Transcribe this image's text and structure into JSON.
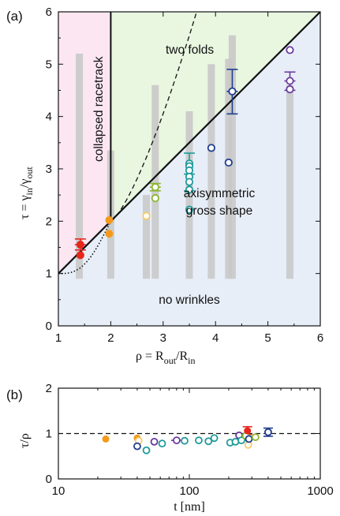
{
  "chart_data": [
    {
      "panel": "(a)",
      "type": "scatter",
      "xlabel": "ρ = R_out/R_in",
      "ylabel": "τ = γ_in/γ_out",
      "xlim": [
        1,
        6
      ],
      "ylim": [
        0,
        6
      ],
      "xticks": [
        1,
        2,
        3,
        4,
        5,
        6
      ],
      "yticks": [
        0,
        1,
        2,
        3,
        4,
        5,
        6
      ],
      "regions": [
        {
          "label": "collapsed racetrack",
          "color": "#fbe6f1",
          "bounds": "x in [1,2], y > x"
        },
        {
          "label": "two folds",
          "color": "#e9f6e0",
          "bounds": "x > 2, y > x"
        },
        {
          "label": "axisymmetric gross shape",
          "color": "#e8eef8",
          "bounds": "y < x"
        },
        {
          "label": "no wrinkles",
          "color": "#e8eef8",
          "bounds": "below curve"
        }
      ],
      "gray_bars": [
        {
          "x": 1.4,
          "y_top": 5.2
        },
        {
          "x": 2.0,
          "y_top": 3.35
        },
        {
          "x": 2.68,
          "y_top": 2.5
        },
        {
          "x": 2.85,
          "y_top": 4.6
        },
        {
          "x": 3.5,
          "y_top": 4.1
        },
        {
          "x": 3.92,
          "y_top": 5.0
        },
        {
          "x": 4.25,
          "y_top": 5.1
        },
        {
          "x": 4.32,
          "y_top": 5.55
        },
        {
          "x": 5.42,
          "y_top": 4.6
        }
      ],
      "gray_bar_bottom": 0.9,
      "series": [
        {
          "color": "#e8261c",
          "filled": true,
          "points": [
            {
              "x": 1.42,
              "y": 1.55
            },
            {
              "x": 1.42,
              "y": 1.35
            }
          ],
          "errbar": {
            "x": 1.42,
            "y": 1.55,
            "lo": 1.45,
            "hi": 1.66
          }
        },
        {
          "color": "#f39a1c",
          "filled": true,
          "points": [
            {
              "x": 1.97,
              "y": 2.02
            },
            {
              "x": 1.97,
              "y": 1.76
            }
          ]
        },
        {
          "color": "#f6cd6a",
          "filled": false,
          "points": [
            {
              "x": 2.68,
              "y": 2.1
            }
          ]
        },
        {
          "color": "#8cb52f",
          "filled": false,
          "points": [
            {
              "x": 2.85,
              "y": 2.65
            },
            {
              "x": 2.85,
              "y": 2.44
            }
          ],
          "errbar": {
            "x": 2.85,
            "y": 2.65,
            "lo": 2.58,
            "hi": 2.72
          }
        },
        {
          "color": "#1f9a9a",
          "filled": false,
          "points": [
            {
              "x": 3.5,
              "y": 3.1
            },
            {
              "x": 3.5,
              "y": 3.05
            },
            {
              "x": 3.5,
              "y": 2.97
            },
            {
              "x": 3.5,
              "y": 2.85
            },
            {
              "x": 3.5,
              "y": 2.75
            },
            {
              "x": 3.5,
              "y": 2.6
            },
            {
              "x": 3.5,
              "y": 2.22
            }
          ],
          "errbar": {
            "x": 3.5,
            "y": 2.9,
            "lo": 2.58,
            "hi": 3.3
          }
        },
        {
          "color": "#203c8e",
          "filled": false,
          "points": [
            {
              "x": 3.92,
              "y": 3.4
            },
            {
              "x": 4.25,
              "y": 3.12
            },
            {
              "x": 4.32,
              "y": 4.48
            }
          ],
          "errbar": {
            "x": 4.32,
            "y": 4.48,
            "lo": 4.05,
            "hi": 4.9
          }
        },
        {
          "color": "#6a3a9e",
          "filled": false,
          "points": [
            {
              "x": 5.42,
              "y": 5.27
            },
            {
              "x": 5.42,
              "y": 4.68
            },
            {
              "x": 5.42,
              "y": 4.52
            }
          ],
          "errbar": {
            "x": 5.42,
            "y": 4.68,
            "lo": 4.5,
            "hi": 4.85
          }
        }
      ]
    },
    {
      "panel": "(b)",
      "type": "scatter",
      "xlabel": "t [nm]",
      "ylabel": "τ/ρ",
      "xscale": "log",
      "xlim": [
        10,
        1000
      ],
      "ylim": [
        0,
        2
      ],
      "xticks": [
        10,
        100,
        1000
      ],
      "yticks": [
        0,
        1,
        2
      ],
      "reference_line": 1,
      "points": [
        {
          "x": 23,
          "y": 0.88,
          "color": "#f39a1c",
          "filled": true
        },
        {
          "x": 40,
          "y": 0.9,
          "color": "#f39a1c",
          "filled": true
        },
        {
          "x": 41,
          "y": 0.84,
          "color": "#f6cd6a",
          "filled": false
        },
        {
          "x": 40,
          "y": 0.72,
          "color": "#203c8e",
          "filled": false
        },
        {
          "x": 47,
          "y": 0.63,
          "color": "#1f9a9a",
          "filled": false
        },
        {
          "x": 54,
          "y": 0.82,
          "color": "#6a3a9e",
          "filled": false
        },
        {
          "x": 62,
          "y": 0.78,
          "color": "#1f9a9a",
          "filled": false
        },
        {
          "x": 80,
          "y": 0.85,
          "color": "#6a3a9e",
          "filled": false
        },
        {
          "x": 92,
          "y": 0.84,
          "color": "#1f9a9a",
          "filled": false
        },
        {
          "x": 118,
          "y": 0.85,
          "color": "#1f9a9a",
          "filled": false
        },
        {
          "x": 140,
          "y": 0.83,
          "color": "#1f9a9a",
          "filled": false
        },
        {
          "x": 155,
          "y": 0.9,
          "color": "#1f9a9a",
          "filled": false
        },
        {
          "x": 205,
          "y": 0.8,
          "color": "#1f9a9a",
          "filled": false
        },
        {
          "x": 225,
          "y": 0.82,
          "color": "#1f9a9a",
          "filled": false
        },
        {
          "x": 240,
          "y": 0.96,
          "color": "#6a3a9e",
          "filled": false
        },
        {
          "x": 250,
          "y": 0.85,
          "color": "#1f9a9a",
          "filled": false
        },
        {
          "x": 270,
          "y": 0.95,
          "color": "#8cb52f",
          "filled": false
        },
        {
          "x": 278,
          "y": 1.06,
          "color": "#e8261c",
          "filled": true
        },
        {
          "x": 282,
          "y": 0.75,
          "color": "#f6cd6a",
          "filled": false
        },
        {
          "x": 285,
          "y": 0.88,
          "color": "#203c8e",
          "filled": false
        },
        {
          "x": 320,
          "y": 0.92,
          "color": "#8cb52f",
          "filled": false
        },
        {
          "x": 400,
          "y": 1.03,
          "color": "#203c8e",
          "filled": false
        }
      ],
      "errbars": [
        {
          "x": 278,
          "lo": 0.98,
          "hi": 1.15,
          "color": "#e8261c"
        },
        {
          "x": 400,
          "lo": 0.94,
          "hi": 1.12,
          "color": "#203c8e"
        },
        {
          "x": 80,
          "lo": 0.82,
          "hi": 0.88,
          "color": "#6a3a9e",
          "horizontal": true
        }
      ]
    }
  ],
  "labels": {
    "panel_a": "(a)",
    "panel_b": "(b)",
    "collapsed": "collapsed racetrack",
    "two_folds": "two folds",
    "axisym_1": "axisymmetric",
    "axisym_2": "gross shape",
    "no_wrinkles": "no wrinkles",
    "ylabel_a": "τ = γ",
    "ylabel_a_sub1": "in",
    "ylabel_a_mid": "/γ",
    "ylabel_a_sub2": "out",
    "xlabel_a": "ρ = R",
    "xlabel_a_sub1": "out",
    "xlabel_a_mid": "/R",
    "xlabel_a_sub2": "in",
    "ylabel_b": "τ/ρ",
    "xlabel_b": "t [nm]"
  }
}
